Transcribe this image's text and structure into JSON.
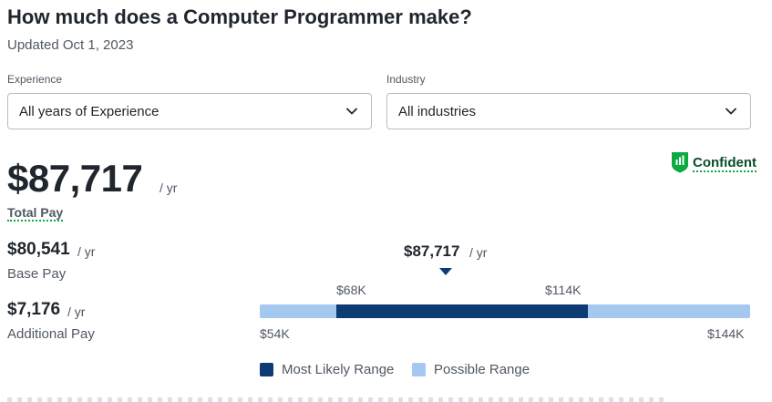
{
  "header": {
    "title": "How much does a Computer Programmer make?",
    "updated": "Updated Oct 1, 2023"
  },
  "filters": {
    "experience": {
      "label": "Experience",
      "value": "All years of Experience"
    },
    "industry": {
      "label": "Industry",
      "value": "All industries"
    }
  },
  "confidence": {
    "label": "Confident",
    "icon": "shield-chart-icon",
    "color": "#0caa41"
  },
  "total_pay": {
    "amount": "$87,717",
    "unit": "/ yr",
    "label": "Total Pay"
  },
  "base_pay": {
    "amount": "$80,541",
    "unit": "/ yr",
    "label": "Base Pay"
  },
  "additional_pay": {
    "amount": "$7,176",
    "unit": "/ yr",
    "label": "Additional Pay"
  },
  "range": {
    "median_amount": "$87,717",
    "median_unit": "/ yr",
    "likely_low": "$68K",
    "likely_high": "$114K",
    "possible_low": "$54K",
    "possible_high": "$144K"
  },
  "legend": {
    "likely": {
      "label": "Most Likely Range",
      "color": "#0d3c75"
    },
    "possible": {
      "label": "Possible Range",
      "color": "#a4c8f0"
    }
  }
}
